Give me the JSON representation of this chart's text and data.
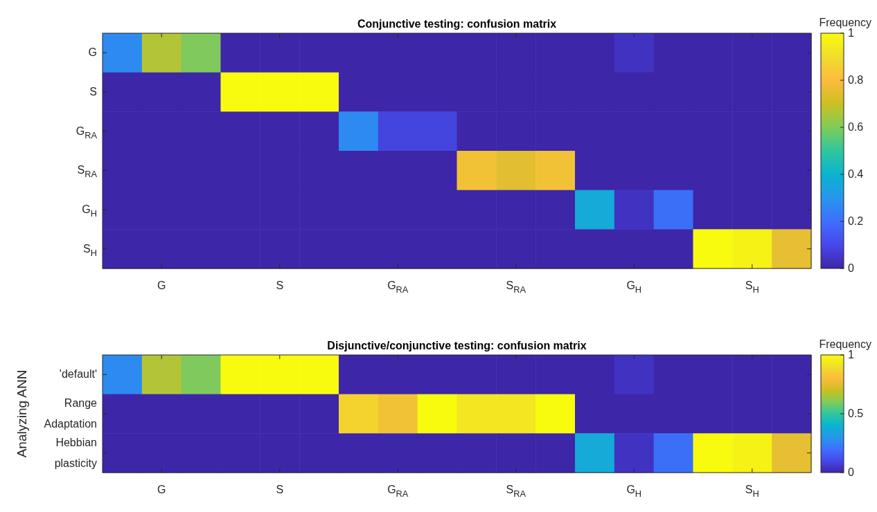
{
  "chart_data": [
    {
      "type": "heatmap",
      "title": "Conjunctive testing: confusion matrix",
      "clabel": "Frequency",
      "categories": [
        null,
        "G",
        null,
        null,
        "S",
        null,
        null,
        "G$_{RA}$",
        null,
        null,
        "S$_{RA}$",
        null,
        null,
        "G$_{H}$",
        null,
        null,
        "S$_{H}$",
        null
      ],
      "y_categories": [
        "G",
        "S",
        "G$_{RA}$",
        "S$_{RA}$",
        "G$_{H}$",
        "S$_{H}$"
      ],
      "cells": [
        [
          0.27,
          0.67,
          0.6,
          0,
          0,
          0,
          0,
          0,
          0,
          0,
          0,
          0,
          0,
          0.04,
          0,
          0,
          0,
          0
        ],
        [
          0,
          0,
          0,
          1,
          1,
          1,
          0,
          0,
          0,
          0,
          0,
          0,
          0,
          0,
          0,
          0,
          0,
          0
        ],
        [
          0,
          0,
          0,
          0,
          0,
          0,
          0.27,
          0.09,
          0.09,
          0,
          0,
          0,
          0,
          0,
          0,
          0,
          0,
          0
        ],
        [
          0,
          0,
          0,
          0,
          0,
          0,
          0,
          0,
          0,
          0.8,
          0.75,
          0.8,
          0,
          0,
          0,
          0,
          0,
          0
        ],
        [
          0,
          0,
          0,
          0,
          0,
          0,
          0,
          0,
          0,
          0,
          0,
          0,
          0.37,
          0.04,
          0.2,
          0,
          0,
          0
        ],
        [
          0,
          0,
          0,
          0,
          0,
          0,
          0,
          0,
          0,
          0,
          0,
          0,
          0,
          0,
          0,
          1,
          0.97,
          0.76
        ]
      ],
      "clim": [
        0,
        1
      ],
      "cticks": [
        0,
        0.2,
        0.4,
        0.6,
        0.8,
        1
      ]
    },
    {
      "type": "heatmap",
      "title": "Disjunctive/conjunctive testing: confusion matrix",
      "clabel": "Frequency",
      "ylabel": "Analyzing ANN",
      "categories": [
        null,
        "G",
        null,
        null,
        "S",
        null,
        null,
        "G$_{RA}$",
        null,
        null,
        "S$_{RA}$",
        null,
        null,
        "G$_{H}$",
        null,
        null,
        "S$_{H}$",
        null
      ],
      "y_categories": [
        "'default'",
        "Range Adaptation",
        "Hebbian plasticity"
      ],
      "cells": [
        [
          0.27,
          0.67,
          0.6,
          1,
          1,
          1,
          0,
          0,
          0,
          0,
          0,
          0,
          0,
          0.04,
          0,
          0,
          0,
          0
        ],
        [
          0,
          0,
          0,
          0,
          0,
          0,
          0.87,
          0.8,
          1,
          0.93,
          0.93,
          1,
          0,
          0,
          0,
          0,
          0,
          0
        ],
        [
          0,
          0,
          0,
          0,
          0,
          0,
          0,
          0,
          0,
          0,
          0,
          0,
          0.37,
          0.04,
          0.2,
          1,
          0.97,
          0.76
        ]
      ],
      "clim": [
        0,
        1
      ],
      "cticks": [
        0,
        0.5,
        1
      ]
    }
  ]
}
